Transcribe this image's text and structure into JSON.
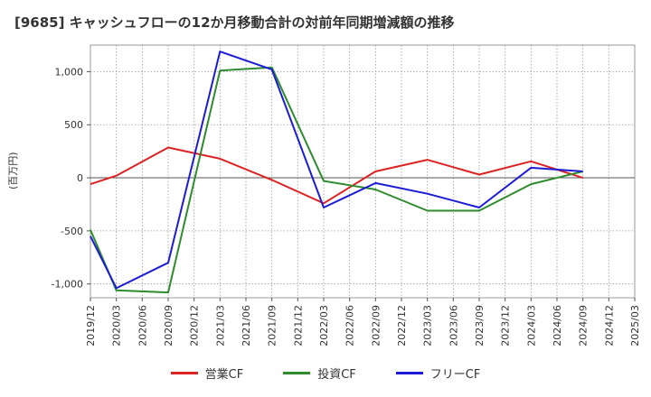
{
  "chart_data": {
    "type": "line",
    "title": "[9685]  キャッシュフローの12か月移動合計の対前年同期増減額の推移",
    "ylabel": "(百万円)",
    "xlabel": "",
    "ylim": [
      -1130,
      1250
    ],
    "yticks": [
      1000,
      500,
      0,
      -500,
      -1000
    ],
    "ytick_labels": [
      "1,000",
      "500",
      "0",
      "-500",
      "-1,000"
    ],
    "categories": [
      "2019/12",
      "2020/03",
      "2020/06",
      "2020/09",
      "2020/12",
      "2021/03",
      "2021/06",
      "2021/09",
      "2021/12",
      "2022/03",
      "2022/06",
      "2022/09",
      "2022/12",
      "2023/03",
      "2023/06",
      "2023/09",
      "2023/12",
      "2024/03",
      "2024/06",
      "2024/09",
      "2024/12",
      "2025/03"
    ],
    "series": [
      {
        "name": "営業CF",
        "color": "#dd2222",
        "values": [
          -60,
          20,
          null,
          285,
          null,
          180,
          null,
          -20,
          null,
          -240,
          null,
          60,
          null,
          170,
          null,
          30,
          null,
          155,
          null,
          0,
          null,
          null
        ]
      },
      {
        "name": "投資CF",
        "color": "#2e8b2e",
        "values": [
          -490,
          -1060,
          null,
          -1080,
          null,
          1010,
          null,
          1040,
          null,
          -30,
          null,
          -110,
          null,
          -310,
          null,
          -310,
          null,
          -60,
          null,
          60,
          null,
          null
        ]
      },
      {
        "name": "フリーCF",
        "color": "#1c1cd6",
        "values": [
          -550,
          -1040,
          null,
          -800,
          null,
          1190,
          null,
          1020,
          null,
          -280,
          null,
          -50,
          null,
          -150,
          null,
          -280,
          null,
          95,
          null,
          60,
          null,
          null
        ]
      }
    ]
  }
}
